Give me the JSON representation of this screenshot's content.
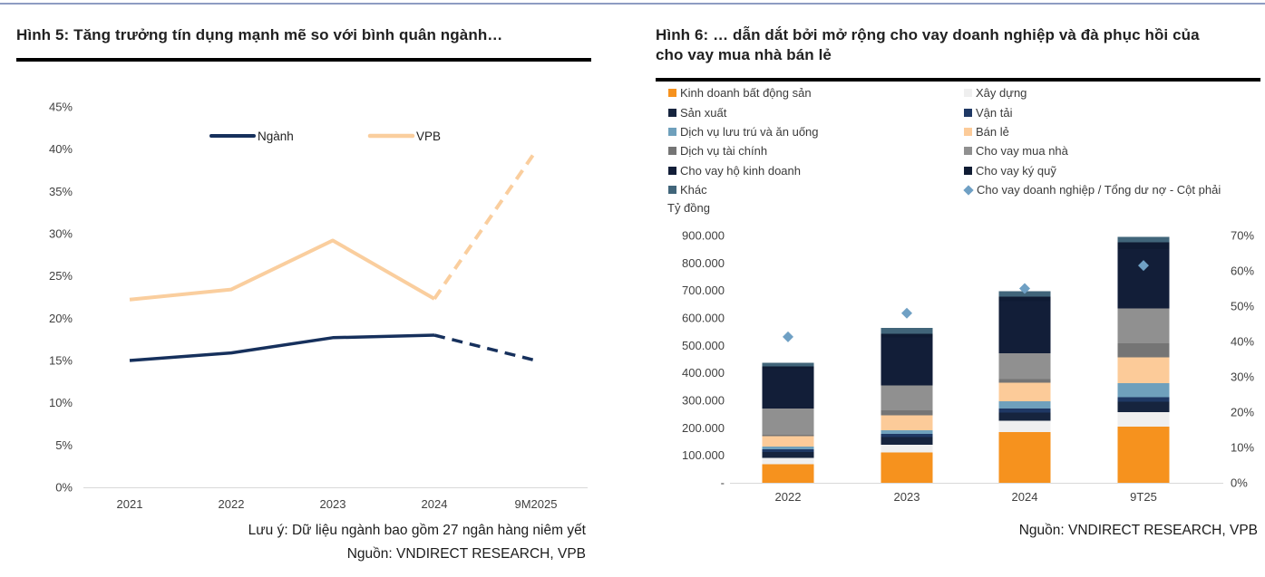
{
  "page": {
    "top_border_color": "#8E9CC2"
  },
  "fig5": {
    "title": "Hình 5: Tăng trưởng tín dụng mạnh mẽ so với bình quân ngành…",
    "note": "Lưu ý: Dữ liệu ngành bao gồm 27 ngân hàng niêm yết",
    "source": "Nguồn: VNDIRECT RESEARCH, VPB"
  },
  "fig6": {
    "title": "Hình 6: … dẫn dắt bởi mở rộng cho vay doanh nghiệp và đà phục hồi của cho vay mua nhà bán lẻ",
    "unit_label": "Tỷ đồng",
    "source": "Nguồn: VNDIRECT RESEARCH, VPB"
  },
  "chart_data": [
    {
      "id": "fig5-credit-growth",
      "type": "line",
      "x": [
        "2021",
        "2022",
        "2023",
        "2024",
        "9M2025"
      ],
      "series": [
        {
          "name": "Ngành",
          "color": "#16305C",
          "stroke_width": 3.5,
          "values": [
            15.0,
            15.9,
            17.7,
            18.0,
            15.0
          ],
          "dashed_after_index": 3
        },
        {
          "name": "VPB",
          "color": "#FACE9E",
          "stroke_width": 4,
          "values": [
            22.2,
            23.4,
            29.2,
            22.3,
            39.8
          ],
          "dashed_after_index": 3
        }
      ],
      "unit": "%",
      "ylim": [
        0,
        45
      ],
      "ytick_step": 5,
      "ytick_labels": [
        "45%",
        "40%",
        "35%",
        "30%",
        "25%",
        "20%",
        "15%",
        "10%",
        "5%",
        "0%"
      ],
      "grid": false,
      "legend_position": "top-center",
      "style_note": "segment 2024→9M2025 drawn dashed (forecast)"
    },
    {
      "id": "fig6-loan-book-mix",
      "type": "bar",
      "subtype": "stacked-bar-with-right-axis-scatter",
      "categories": [
        "2022",
        "2023",
        "2024",
        "9T25"
      ],
      "unit": "Tỷ đồng",
      "left_axis": {
        "lim": [
          0,
          900000
        ],
        "tick_labels": [
          "-",
          "100.000",
          "200.000",
          "300.000",
          "400.000",
          "500.000",
          "600.000",
          "700.000",
          "800.000",
          "900.000"
        ]
      },
      "right_axis": {
        "lim": [
          0,
          70
        ],
        "tick_labels": [
          "0%",
          "10%",
          "20%",
          "30%",
          "40%",
          "50%",
          "60%",
          "70%"
        ]
      },
      "series": [
        {
          "name": "Kinh doanh bất động sản",
          "color": "#F6921E",
          "values": [
            67000,
            111000,
            184000,
            205000
          ]
        },
        {
          "name": "Xây dựng",
          "color": "#EFEFEF",
          "values": [
            23000,
            27000,
            42000,
            52000
          ]
        },
        {
          "name": "Sản xuất",
          "color": "#16243E",
          "values": [
            22000,
            28000,
            30000,
            38000
          ]
        },
        {
          "name": "Vận tải",
          "color": "#1F3864",
          "values": [
            10000,
            12000,
            15000,
            17000
          ]
        },
        {
          "name": "Dịch vụ lưu trú và ăn uống",
          "color": "#6FA0BC",
          "values": [
            10000,
            13000,
            25000,
            50000
          ]
        },
        {
          "name": "Bán lẻ",
          "color": "#FCCB99",
          "values": [
            37000,
            55000,
            68000,
            95000
          ]
        },
        {
          "name": "Dịch vụ tài chính",
          "color": "#757575",
          "values": [
            5000,
            17000,
            14000,
            50000
          ]
        },
        {
          "name": "Cho vay mua nhà",
          "color": "#909090",
          "values": [
            97000,
            91000,
            93000,
            128000
          ]
        },
        {
          "name": "Cho vay hộ kinh doanh",
          "color": "#121E38",
          "values": [
            145000,
            175000,
            190000,
            215000
          ]
        },
        {
          "name": "Cho vay ký quỹ",
          "color": "#0F1B33",
          "values": [
            8000,
            14000,
            16000,
            25000
          ]
        },
        {
          "name": "Khác",
          "color": "#41657A",
          "values": [
            12000,
            20000,
            20000,
            20000
          ]
        }
      ],
      "totals": [
        436000,
        563000,
        697000,
        895000
      ],
      "scatter_series": {
        "name": "Cho vay doanh nghiệp / Tổng dư nợ - Cột phải",
        "color": "#6FA0C4",
        "marker": "diamond",
        "axis": "right",
        "values": [
          41.3,
          48,
          55,
          61.5
        ]
      }
    }
  ]
}
